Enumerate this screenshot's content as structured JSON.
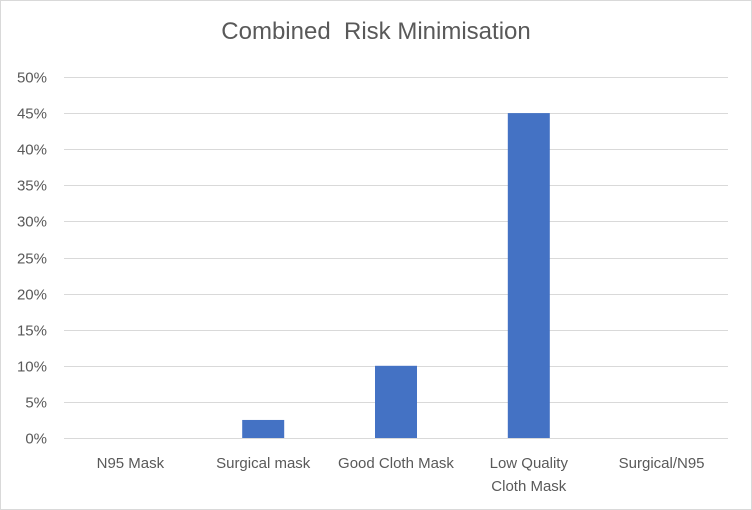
{
  "chart_data": {
    "type": "bar",
    "title": "Combined  Risk Minimisation",
    "xlabel": "",
    "ylabel": "",
    "categories": [
      [
        "N95 Mask"
      ],
      [
        "Surgical mask"
      ],
      [
        "Good Cloth Mask"
      ],
      [
        "Low Quality",
        "Cloth Mask"
      ],
      [
        "Surgical/N95"
      ]
    ],
    "values": [
      0,
      0.025,
      0.1,
      0.45,
      0
    ],
    "ylim": [
      0,
      0.5
    ],
    "yticks": [
      "0%",
      "5%",
      "10%",
      "15%",
      "20%",
      "25%",
      "30%",
      "35%",
      "40%",
      "45%",
      "50%"
    ],
    "bar_color": "#4472C4",
    "grid": true,
    "legend": "none"
  }
}
